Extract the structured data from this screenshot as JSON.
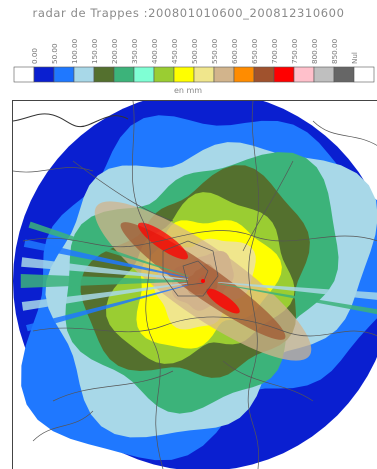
{
  "title": "radar de Trappes :200801010600_200812310600",
  "legend": {
    "unit": "en mm",
    "classes": [
      {
        "label": "",
        "color": "#ffffff"
      },
      {
        "label": "0.00",
        "color": "#0a1fd0"
      },
      {
        "label": "50.00",
        "color": "#1f78ff"
      },
      {
        "label": "100.00",
        "color": "#a8d8e8"
      },
      {
        "label": "150.00",
        "color": "#54702e"
      },
      {
        "label": "200.00",
        "color": "#3cb37a"
      },
      {
        "label": "350.00",
        "color": "#7fffd4"
      },
      {
        "label": "400.00",
        "color": "#9acd32"
      },
      {
        "label": "450.00",
        "color": "#ffff00"
      },
      {
        "label": "500.00",
        "color": "#f0e68c"
      },
      {
        "label": "550.00",
        "color": "#d2b48c"
      },
      {
        "label": "600.00",
        "color": "#ff8c00"
      },
      {
        "label": "650.00",
        "color": "#a0522d"
      },
      {
        "label": "700.00",
        "color": "#ff0000"
      },
      {
        "label": "750.00",
        "color": "#ffc0cb"
      },
      {
        "label": "800.00",
        "color": "#bfbfbf"
      },
      {
        "label": "850.00",
        "color": "#666666"
      },
      {
        "label": "Nul",
        "color": "#ffffff"
      }
    ]
  },
  "map": {
    "ring_colors": [
      "#0a1fd0",
      "#1f78ff",
      "#a8d8e8",
      "#3cb37a",
      "#54702e",
      "#9acd32",
      "#ffff00",
      "#f0e68c",
      "#d2b48c",
      "#a0522d",
      "#ff0000"
    ],
    "border_color": "#333333",
    "dept_line_color": "#555555"
  }
}
